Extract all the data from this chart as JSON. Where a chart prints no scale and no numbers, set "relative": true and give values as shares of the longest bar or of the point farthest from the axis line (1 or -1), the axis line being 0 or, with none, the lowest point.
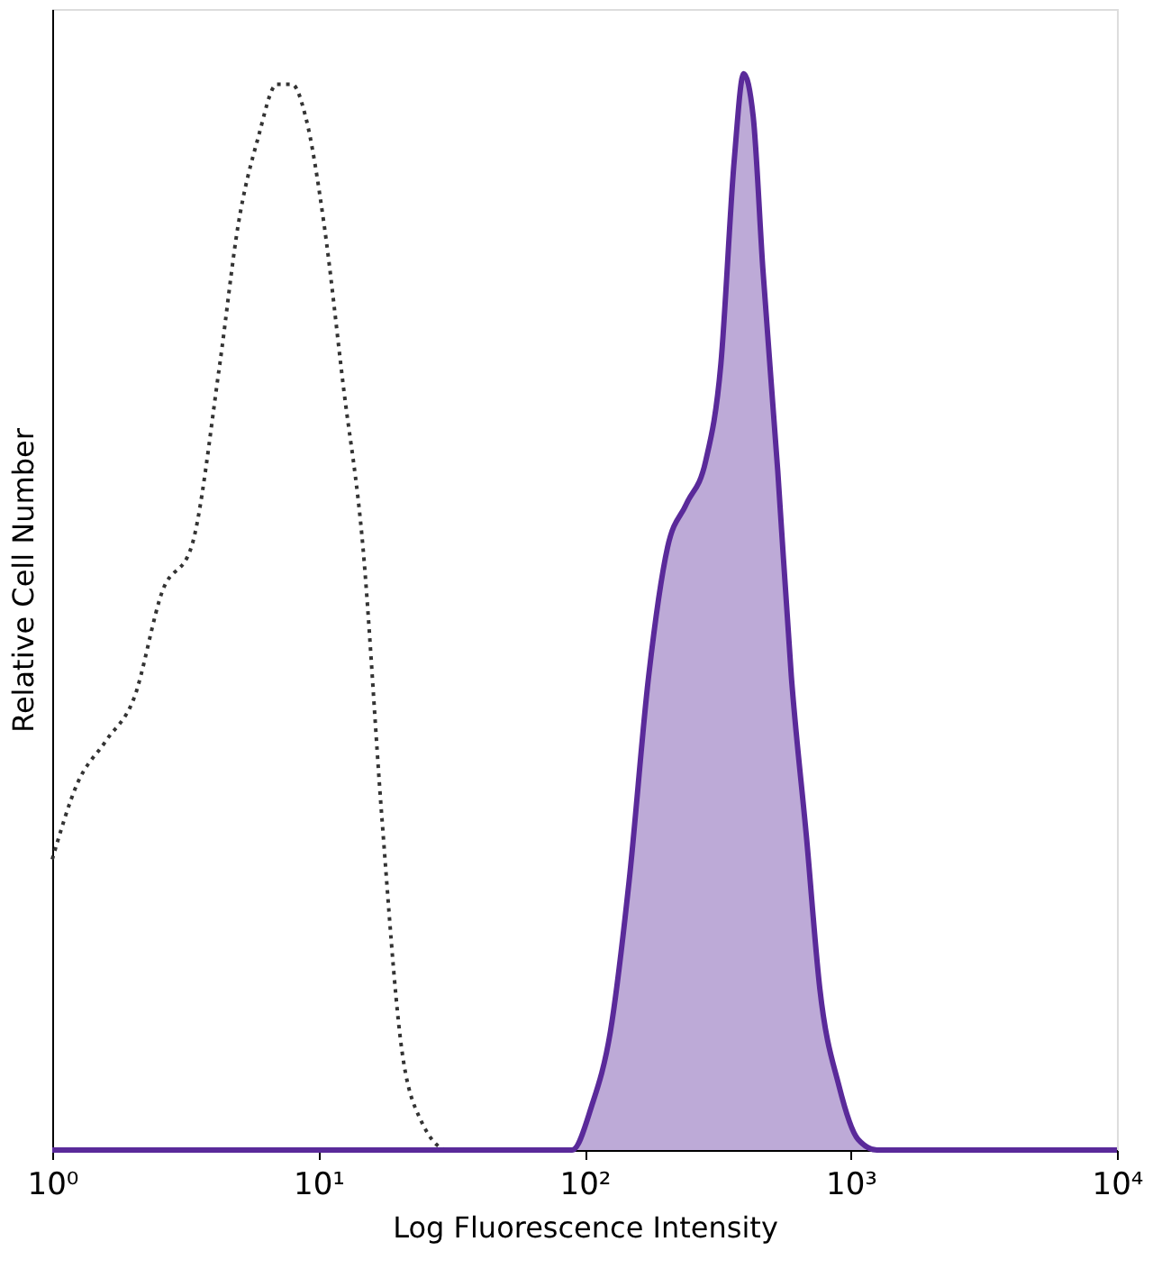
{
  "chart_data": {
    "type": "line",
    "xlabel": "Log Fluorescence Intensity",
    "ylabel": "Relative Cell Number",
    "relative": true,
    "log": "x",
    "xlim": [
      1,
      10000
    ],
    "xticks": [
      {
        "value": 1,
        "label": "10⁰"
      },
      {
        "value": 10,
        "label": "10¹"
      },
      {
        "value": 100,
        "label": "10²"
      },
      {
        "value": 1000,
        "label": "10³"
      },
      {
        "value": 10000,
        "label": "10⁴"
      }
    ],
    "series": [
      {
        "color": "#333333",
        "line_style": "dotted",
        "x": [
          1,
          1.24,
          1.59,
          2.03,
          2.6,
          3.33,
          4.26,
          5.0,
          5.93,
          6.98,
          7.97,
          8.95,
          10.5,
          12.4,
          14.7,
          17.3,
          20.4,
          24,
          30.8,
          46.5,
          90
        ],
        "values": [
          0.27,
          0.34,
          0.38,
          0.42,
          0.52,
          0.56,
          0.73,
          0.86,
          0.94,
          0.99,
          0.99,
          0.96,
          0.86,
          0.71,
          0.56,
          0.31,
          0.1,
          0.03,
          0.0,
          0,
          0
        ]
      },
      {
        "type": "area",
        "color": "#5a2a9a",
        "line_style": "solid",
        "x": [
          1,
          89.8,
          106,
          125,
          147,
          174,
          205,
          241,
          285,
          325,
          365,
          396,
          430,
          467,
          532,
          598,
          682,
          765,
          902,
          1064,
          1254,
          10000
        ],
        "values": [
          0,
          0,
          0.04,
          0.11,
          0.25,
          0.44,
          0.56,
          0.6,
          0.64,
          0.73,
          0.92,
          1,
          0.96,
          0.82,
          0.63,
          0.44,
          0.29,
          0.15,
          0.06,
          0.01,
          0,
          0
        ]
      }
    ]
  }
}
